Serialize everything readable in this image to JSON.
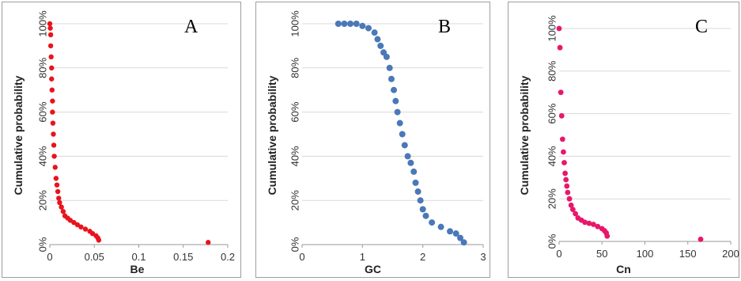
{
  "chart_data": [
    {
      "type": "scatter",
      "panel_label": "A",
      "xlabel": "Be",
      "ylabel": "Cumulative probability",
      "xlim": [
        0,
        0.2
      ],
      "ylim": [
        0,
        1
      ],
      "x_ticks": [
        "0",
        "0.05",
        "0.1",
        "0.15",
        "0.2"
      ],
      "y_ticks": [
        "0%",
        "20%",
        "40%",
        "60%",
        "80%",
        "100%"
      ],
      "color": "#e8141c",
      "grid": "horizontal",
      "points": [
        [
          0.0,
          1.0
        ],
        [
          0.0005,
          0.98
        ],
        [
          0.001,
          0.95
        ],
        [
          0.001,
          0.9
        ],
        [
          0.0015,
          0.85
        ],
        [
          0.002,
          0.8
        ],
        [
          0.002,
          0.75
        ],
        [
          0.0025,
          0.7
        ],
        [
          0.003,
          0.65
        ],
        [
          0.003,
          0.6
        ],
        [
          0.0035,
          0.55
        ],
        [
          0.004,
          0.5
        ],
        [
          0.0045,
          0.45
        ],
        [
          0.005,
          0.4
        ],
        [
          0.006,
          0.35
        ],
        [
          0.007,
          0.3
        ],
        [
          0.008,
          0.27
        ],
        [
          0.009,
          0.24
        ],
        [
          0.01,
          0.21
        ],
        [
          0.011,
          0.19
        ],
        [
          0.013,
          0.17
        ],
        [
          0.015,
          0.15
        ],
        [
          0.017,
          0.13
        ],
        [
          0.02,
          0.12
        ],
        [
          0.023,
          0.11
        ],
        [
          0.027,
          0.1
        ],
        [
          0.031,
          0.09
        ],
        [
          0.035,
          0.08
        ],
        [
          0.04,
          0.07
        ],
        [
          0.045,
          0.06
        ],
        [
          0.048,
          0.05
        ],
        [
          0.052,
          0.04
        ],
        [
          0.054,
          0.03
        ],
        [
          0.055,
          0.02
        ],
        [
          0.178,
          0.01
        ]
      ]
    },
    {
      "type": "scatter",
      "panel_label": "B",
      "xlabel": "GC",
      "ylabel": "Cumulative probability",
      "xlim": [
        0,
        3
      ],
      "ylim": [
        0,
        1
      ],
      "x_ticks": [
        "0",
        "1",
        "2",
        "3"
      ],
      "y_ticks": [
        "0%",
        "20%",
        "40%",
        "60%",
        "80%",
        "100%"
      ],
      "color": "#4a78b8",
      "grid": "horizontal",
      "points": [
        [
          0.6,
          1.0
        ],
        [
          0.7,
          1.0
        ],
        [
          0.8,
          1.0
        ],
        [
          0.9,
          1.0
        ],
        [
          1.0,
          0.99
        ],
        [
          1.1,
          0.98
        ],
        [
          1.2,
          0.96
        ],
        [
          1.25,
          0.93
        ],
        [
          1.3,
          0.9
        ],
        [
          1.35,
          0.87
        ],
        [
          1.4,
          0.85
        ],
        [
          1.45,
          0.8
        ],
        [
          1.48,
          0.75
        ],
        [
          1.52,
          0.7
        ],
        [
          1.55,
          0.65
        ],
        [
          1.58,
          0.6
        ],
        [
          1.62,
          0.55
        ],
        [
          1.66,
          0.5
        ],
        [
          1.7,
          0.45
        ],
        [
          1.75,
          0.4
        ],
        [
          1.8,
          0.37
        ],
        [
          1.85,
          0.33
        ],
        [
          1.88,
          0.28
        ],
        [
          1.92,
          0.24
        ],
        [
          1.96,
          0.2
        ],
        [
          2.0,
          0.16
        ],
        [
          2.05,
          0.13
        ],
        [
          2.15,
          0.1
        ],
        [
          2.3,
          0.08
        ],
        [
          2.45,
          0.06
        ],
        [
          2.55,
          0.05
        ],
        [
          2.62,
          0.03
        ],
        [
          2.68,
          0.01
        ]
      ]
    },
    {
      "type": "scatter",
      "panel_label": "C",
      "xlabel": "Cn",
      "ylabel": "Cumulative probability",
      "xlim": [
        0,
        200
      ],
      "ylim": [
        0,
        1
      ],
      "x_ticks": [
        "0",
        "50",
        "100",
        "150",
        "200"
      ],
      "y_ticks": [
        "0%",
        "20%",
        "40%",
        "60%",
        "80%",
        "100%"
      ],
      "color": "#e8176b",
      "grid": "horizontal",
      "points": [
        [
          0,
          1.0
        ],
        [
          1,
          0.91
        ],
        [
          2,
          0.7
        ],
        [
          3,
          0.59
        ],
        [
          4,
          0.48
        ],
        [
          5,
          0.42
        ],
        [
          6,
          0.37
        ],
        [
          7,
          0.32
        ],
        [
          8,
          0.29
        ],
        [
          9,
          0.26
        ],
        [
          10,
          0.23
        ],
        [
          12,
          0.2
        ],
        [
          14,
          0.17
        ],
        [
          16,
          0.15
        ],
        [
          19,
          0.13
        ],
        [
          22,
          0.11
        ],
        [
          26,
          0.1
        ],
        [
          30,
          0.09
        ],
        [
          35,
          0.085
        ],
        [
          40,
          0.08
        ],
        [
          45,
          0.07
        ],
        [
          50,
          0.06
        ],
        [
          53,
          0.05
        ],
        [
          55,
          0.04
        ],
        [
          56,
          0.025
        ],
        [
          165,
          0.01
        ]
      ]
    }
  ]
}
